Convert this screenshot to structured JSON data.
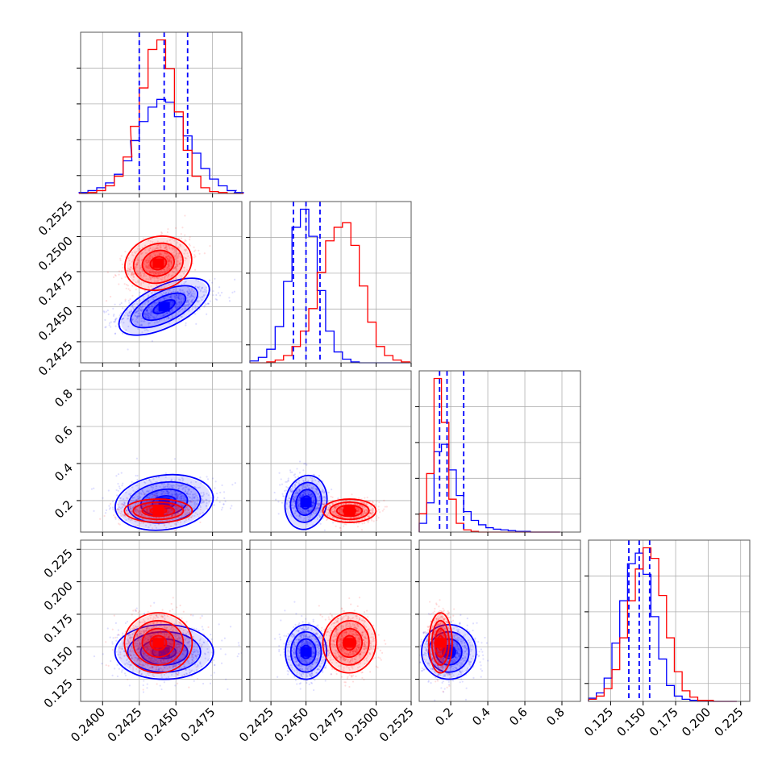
{
  "chart_data": {
    "type": "corner",
    "title": "",
    "grid": true,
    "legend": "none",
    "colors": {
      "series_a": "#0000ff",
      "series_b": "#ff0000",
      "grid": "#b0b0b0",
      "frame": "#555555"
    },
    "parameters": [
      {
        "range": [
          0.2385,
          0.2495
        ],
        "ticks": [
          0.24,
          0.2425,
          0.245,
          0.2475
        ],
        "tick_labels": [
          "0.2400",
          "0.2425",
          "0.2450",
          "0.2475"
        ],
        "quantiles": [
          0.2425,
          0.2442,
          0.2458
        ]
      },
      {
        "range": [
          0.241,
          0.2525
        ],
        "ticks": [
          0.2425,
          0.245,
          0.2475,
          0.25,
          0.2525
        ],
        "tick_labels": [
          "0.2425",
          "0.2450",
          "0.2475",
          "0.2500",
          "0.2525"
        ],
        "quantiles": [
          0.2441,
          0.245,
          0.246
        ]
      },
      {
        "range": [
          0.03,
          0.9
        ],
        "ticks": [
          0.2,
          0.4,
          0.6,
          0.8
        ],
        "tick_labels": [
          "0.2",
          "0.4",
          "0.6",
          "0.8"
        ],
        "quantiles": [
          0.14,
          0.18,
          0.27
        ]
      },
      {
        "range": [
          0.108,
          0.232
        ],
        "ticks": [
          0.125,
          0.15,
          0.175,
          0.2,
          0.225
        ],
        "tick_labels": [
          "0.125",
          "0.150",
          "0.175",
          "0.200",
          "0.225"
        ],
        "quantiles": [
          0.139,
          0.147,
          0.155
        ]
      }
    ],
    "series": [
      {
        "color": "#0000ff",
        "mean": [
          0.2442,
          0.245,
          0.19,
          0.146
        ],
        "std": [
          0.0016,
          0.0007,
          0.07,
          0.01
        ]
      },
      {
        "color": "#ff0000",
        "mean": [
          0.2438,
          0.2481,
          0.145,
          0.153
        ],
        "std": [
          0.0011,
          0.0009,
          0.03,
          0.011
        ]
      }
    ],
    "histograms": {
      "x": [
        0.2387,
        0.2393,
        0.2399,
        0.2405,
        0.2411,
        0.2417,
        0.2422,
        0.2428,
        0.2434,
        0.244,
        0.2446,
        0.2452,
        0.2458,
        0.2464,
        0.247,
        0.2476,
        0.2482,
        0.2488,
        0.2493
      ],
      "p0_blue": [
        1,
        3,
        6,
        11,
        20,
        34,
        55,
        75,
        90,
        98,
        95,
        80,
        60,
        42,
        26,
        15,
        8,
        3,
        1
      ],
      "p0_red": [
        0,
        1,
        3,
        8,
        18,
        38,
        70,
        110,
        150,
        160,
        130,
        85,
        45,
        18,
        6,
        2,
        1,
        0,
        0
      ],
      "p1_x": [
        0.2413,
        0.2419,
        0.2425,
        0.2431,
        0.2437,
        0.2443,
        0.2449,
        0.2455,
        0.2461,
        0.2467,
        0.2473,
        0.2479,
        0.2485,
        0.2491,
        0.2497,
        0.2503,
        0.2509,
        0.2515,
        0.2521
      ],
      "p1_blue": [
        2,
        6,
        15,
        40,
        90,
        150,
        170,
        140,
        80,
        35,
        12,
        4,
        1,
        0,
        0,
        0,
        0,
        0,
        0
      ],
      "p1_red": [
        0,
        0,
        1,
        3,
        8,
        18,
        35,
        60,
        100,
        135,
        150,
        155,
        130,
        85,
        45,
        18,
        8,
        3,
        1
      ],
      "p2_x": [
        0.05,
        0.09,
        0.13,
        0.17,
        0.21,
        0.25,
        0.29,
        0.33,
        0.37,
        0.41,
        0.45,
        0.49,
        0.53,
        0.57,
        0.61,
        0.65,
        0.69,
        0.73,
        0.77
      ],
      "p2_blue": [
        12,
        40,
        110,
        120,
        85,
        50,
        28,
        16,
        10,
        6,
        4,
        3,
        2,
        1,
        1,
        0,
        0,
        0,
        0
      ],
      "p2_red": [
        25,
        80,
        210,
        150,
        45,
        12,
        3,
        1,
        0,
        0,
        0,
        0,
        0,
        0,
        0,
        0,
        0,
        0,
        0
      ],
      "p3_x": [
        0.111,
        0.117,
        0.123,
        0.129,
        0.135,
        0.141,
        0.147,
        0.153,
        0.159,
        0.165,
        0.171,
        0.177,
        0.183,
        0.189,
        0.195,
        0.201,
        0.207,
        0.213,
        0.219
      ],
      "p3_blue": [
        3,
        8,
        22,
        55,
        95,
        130,
        140,
        120,
        80,
        40,
        15,
        5,
        2,
        1,
        0,
        0,
        0,
        0,
        0
      ],
      "p3_red": [
        2,
        5,
        12,
        30,
        60,
        95,
        125,
        145,
        135,
        100,
        60,
        28,
        10,
        4,
        1,
        1,
        0,
        0,
        0
      ]
    }
  }
}
